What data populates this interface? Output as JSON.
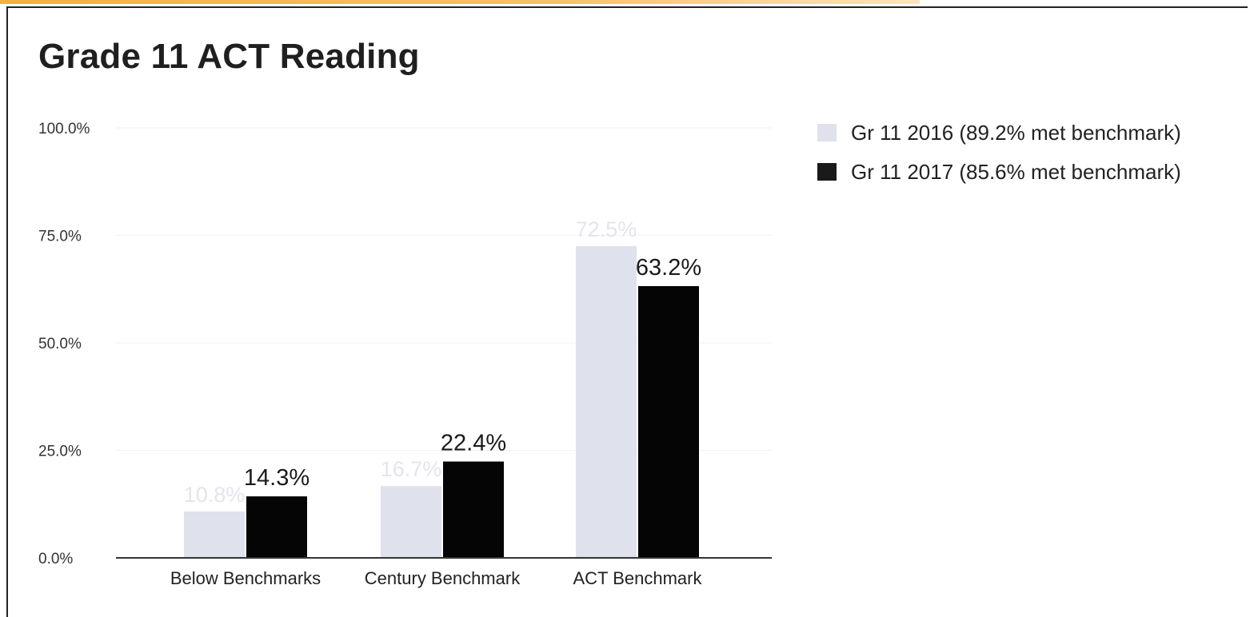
{
  "chart_data": {
    "type": "bar",
    "title": "Grade 11 ACT Reading",
    "categories": [
      "Below Benchmarks",
      "Century Benchmark",
      "ACT Benchmark"
    ],
    "series": [
      {
        "name": "Gr 11 2016 (89.2% met benchmark)",
        "color": "#dfe1ec",
        "values": [
          10.8,
          16.7,
          72.5
        ],
        "labels": [
          "10.8%",
          "16.7%",
          "72.5%"
        ]
      },
      {
        "name": "Gr 11 2017 (85.6% met benchmark)",
        "color": "#050505",
        "values": [
          14.3,
          22.4,
          63.2
        ],
        "labels": [
          "14.3%",
          "22.4%",
          "63.2%"
        ]
      }
    ],
    "ylim": [
      0,
      100
    ],
    "yticks": [
      0,
      25,
      50,
      75,
      100
    ],
    "ytick_labels": [
      "0.0%",
      "25.0%",
      "50.0%",
      "75.0%",
      "100.0%"
    ],
    "grid": true,
    "legend_position": "top-right",
    "xlabel": "",
    "ylabel": ""
  }
}
